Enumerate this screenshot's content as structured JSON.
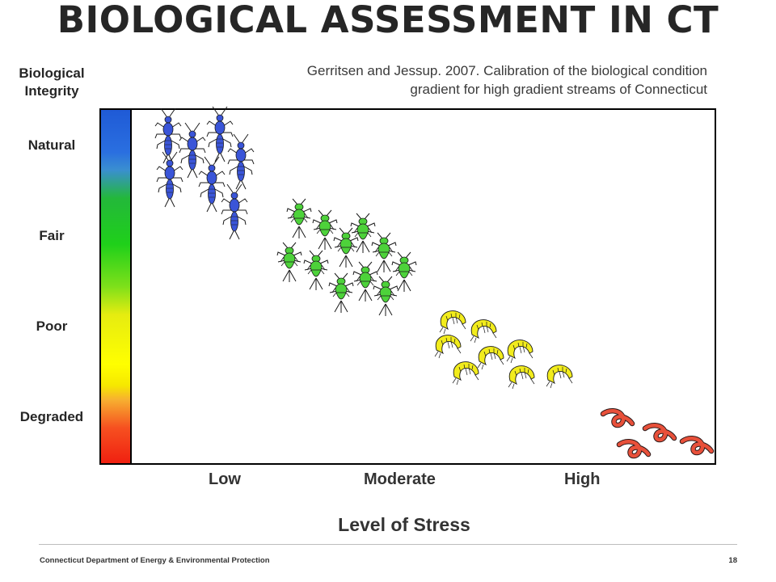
{
  "title": "BIOLOGICAL ASSESSMENT IN CT",
  "y_axis_title": "Biological\nIntegrity",
  "citation_line1": "Gerritsen and Jessup. 2007. Calibration of the biological condition",
  "citation_line2": "gradient for high gradient streams of Connecticut",
  "integrity_levels": [
    "Natural",
    "Fair",
    "Poor",
    "Degraded"
  ],
  "stress_levels": [
    "Low",
    "Moderate",
    "High"
  ],
  "x_axis_title": "Level of Stress",
  "footer": "Connecticut Department of Energy & Environmental Protection",
  "page_number": "18",
  "colors": {
    "stonefly": "#3a55d8",
    "mayfly": "#4dd23a",
    "shrimp": "#f2ec1c",
    "worm": "#e8503a"
  },
  "icons": [
    "stonefly-icon",
    "mayfly-icon",
    "shrimp-icon",
    "worm-icon"
  ]
}
